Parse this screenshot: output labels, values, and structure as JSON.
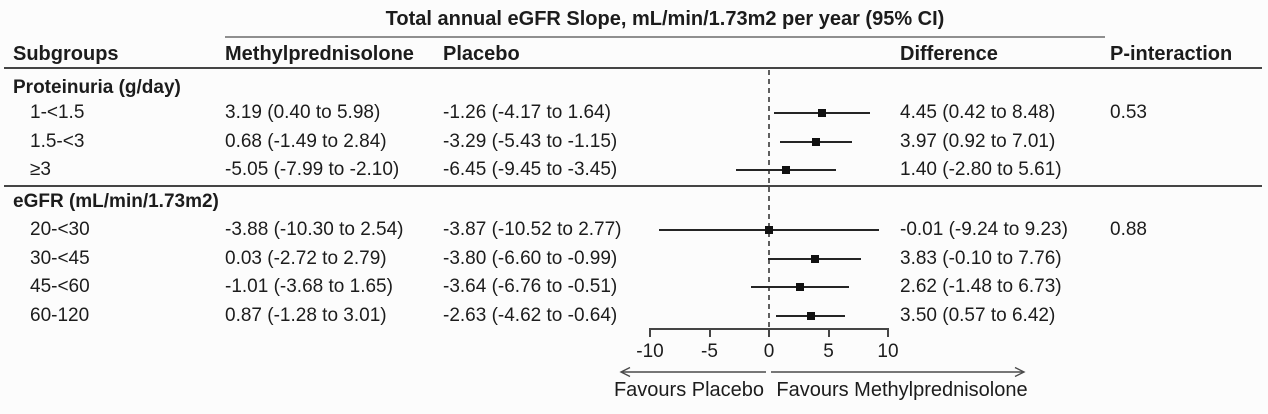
{
  "chart_data": {
    "type": "forest",
    "title": "Total annual eGFR Slope, mL/min/1.73m2 per year (95% CI)",
    "columns": {
      "subgroups": "Subgroups",
      "treatment": "Methylprednisolone",
      "control": "Placebo",
      "difference": "Difference",
      "p_interaction": "P-interaction"
    },
    "sections": [
      {
        "label": "Proteinuria (g/day)",
        "rows": [
          {
            "subgroup": "1-<1.5",
            "treatment": "3.19 (0.40 to 5.98)",
            "control": "-1.26 (-4.17 to 1.64)",
            "difference": "4.45 (0.42 to 8.48)",
            "p_interaction": "0.53",
            "est": 4.45,
            "lo": 0.42,
            "hi": 8.48
          },
          {
            "subgroup": "1.5-<3",
            "treatment": "0.68 (-1.49 to 2.84)",
            "control": "-3.29 (-5.43 to -1.15)",
            "difference": "3.97 (0.92 to 7.01)",
            "p_interaction": "",
            "est": 3.97,
            "lo": 0.92,
            "hi": 7.01
          },
          {
            "subgroup": "≥3",
            "treatment": "-5.05 (-7.99 to -2.10)",
            "control": "-6.45 (-9.45 to -3.45)",
            "difference": "1.40 (-2.80 to 5.61)",
            "p_interaction": "",
            "est": 1.4,
            "lo": -2.8,
            "hi": 5.61
          }
        ]
      },
      {
        "label": "eGFR (mL/min/1.73m2)",
        "rows": [
          {
            "subgroup": "20-<30",
            "treatment": "-3.88 (-10.30 to 2.54)",
            "control": "-3.87 (-10.52 to 2.77)",
            "difference": "-0.01 (-9.24 to 9.23)",
            "p_interaction": "0.88",
            "est": -0.01,
            "lo": -9.24,
            "hi": 9.23
          },
          {
            "subgroup": "30-<45",
            "treatment": "0.03 (-2.72 to 2.79)",
            "control": "-3.80 (-6.60 to -0.99)",
            "difference": "3.83 (-0.10 to 7.76)",
            "p_interaction": "",
            "est": 3.83,
            "lo": -0.1,
            "hi": 7.76
          },
          {
            "subgroup": "45-<60",
            "treatment": "-1.01 (-3.68 to 1.65)",
            "control": "-3.64 (-6.76 to -0.51)",
            "difference": "2.62 (-1.48 to 6.73)",
            "p_interaction": "",
            "est": 2.62,
            "lo": -1.48,
            "hi": 6.73
          },
          {
            "subgroup": "60-120",
            "treatment": "0.87 (-1.28 to 3.01)",
            "control": "-2.63 (-4.62 to -0.64)",
            "difference": "3.50 (0.57 to 6.42)",
            "p_interaction": "",
            "est": 3.5,
            "lo": 0.57,
            "hi": 6.42
          }
        ]
      }
    ],
    "axis": {
      "xlim": [
        -10,
        10
      ],
      "ticks": [
        -10,
        -5,
        0,
        5,
        10
      ],
      "tick_labels": [
        "-10",
        "-5",
        "0",
        "5",
        "10"
      ],
      "reference_line_x": 0,
      "reference_line_style": "dashed"
    },
    "footer": {
      "left_label": "Favours Placebo",
      "right_label": "Favours Methylprednisolone"
    },
    "colors": {
      "text": "#1c1c1c",
      "lines": "#454545",
      "marker": "#111111",
      "title_rule": "#8f8f8f",
      "background": "#fcfcfc"
    }
  }
}
